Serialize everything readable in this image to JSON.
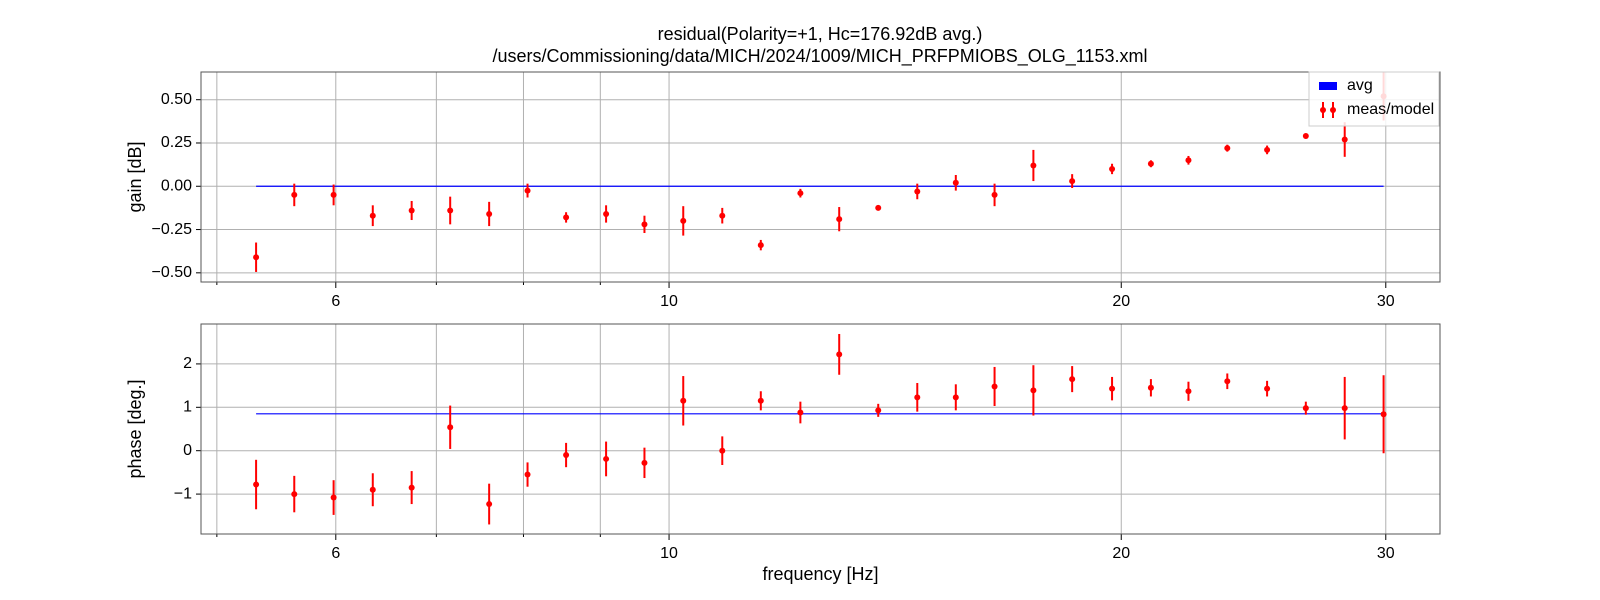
{
  "chart_data": [
    {
      "type": "errorbar",
      "title": "residual(Polarity=+1,  Hc=176.92dB avg.)",
      "subtitle": "/users/Commissioning/data/MICH/2024/1009/MICH_PRFPMIOBS_OLG_1153.xml",
      "ylabel": "gain [dB]",
      "xscale": "log",
      "grid": true,
      "legend": "upper right",
      "xlim": [
        4.88,
        32.6
      ],
      "xticks": [
        6,
        10,
        20,
        30
      ],
      "xminor_ticks": [
        5,
        7,
        8,
        9
      ],
      "ylim": [
        -0.553,
        0.66
      ],
      "yticks": [
        {
          "value": 0.5,
          "label": "0.50"
        },
        {
          "value": 0.25,
          "label": "0.25"
        },
        {
          "value": 0,
          "label": "0.00"
        },
        {
          "value": -0.25,
          "label": "−0.25"
        },
        {
          "value": -0.5,
          "label": "−0.50"
        }
      ],
      "series": [
        {
          "name": "avg",
          "kind": "line",
          "color": "#0000ff",
          "x": [
            5.31,
            29.9
          ],
          "values": [
            0,
            0
          ]
        },
        {
          "name": "meas/model",
          "kind": "errorbar",
          "color": "#ff0000",
          "x": [
            5.31,
            5.63,
            5.98,
            6.35,
            6.74,
            7.15,
            7.59,
            8.05,
            8.54,
            9.08,
            9.63,
            10.22,
            10.85,
            11.51,
            12.23,
            12.98,
            13.78,
            14.63,
            15.52,
            16.47,
            17.48,
            18.55,
            19.72,
            20.93,
            22.17,
            23.53,
            25.01,
            26.54,
            28.17,
            29.9
          ],
          "values": [
            -0.41,
            -0.05,
            -0.05,
            -0.17,
            -0.14,
            -0.14,
            -0.16,
            -0.025,
            -0.18,
            -0.16,
            -0.22,
            -0.2,
            -0.17,
            -0.34,
            -0.04,
            -0.19,
            -0.125,
            -0.03,
            0.02,
            -0.05,
            0.12,
            0.03,
            0.1,
            0.13,
            0.15,
            0.22,
            0.21,
            0.29,
            0.27,
            0.52
          ],
          "errors": [
            0.085,
            0.065,
            0.06,
            0.06,
            0.055,
            0.08,
            0.07,
            0.04,
            0.03,
            0.05,
            0.05,
            0.085,
            0.045,
            0.03,
            0.025,
            0.07,
            0.01,
            0.045,
            0.045,
            0.065,
            0.09,
            0.04,
            0.03,
            0.02,
            0.025,
            0.02,
            0.025,
            0.015,
            0.1,
            0.14
          ]
        }
      ]
    },
    {
      "type": "errorbar",
      "ylabel": "phase [deg.]",
      "xlabel": "frequency [Hz]",
      "xscale": "log",
      "grid": true,
      "xlim": [
        4.88,
        32.6
      ],
      "xticks": [
        6,
        10,
        20,
        30
      ],
      "xminor_ticks": [
        5,
        7,
        8,
        9
      ],
      "ylim": [
        -1.92,
        2.92
      ],
      "yticks": [
        2,
        1,
        0,
        {
          "value": -1,
          "label": "−1"
        }
      ],
      "series": [
        {
          "kind": "line",
          "color": "#0000ff",
          "x": [
            5.31,
            29.9
          ],
          "values": [
            0.85,
            0.85
          ]
        },
        {
          "kind": "errorbar",
          "color": "#ff0000",
          "x": [
            5.31,
            5.63,
            5.98,
            6.35,
            6.74,
            7.15,
            7.59,
            8.05,
            8.54,
            9.08,
            9.63,
            10.22,
            10.85,
            11.51,
            12.23,
            12.98,
            13.78,
            14.63,
            15.52,
            16.47,
            17.48,
            18.55,
            19.72,
            20.93,
            22.17,
            23.53,
            25.01,
            26.54,
            28.17,
            29.9
          ],
          "values": [
            -0.78,
            -1.0,
            -1.08,
            -0.9,
            -0.85,
            0.54,
            -1.23,
            -0.55,
            -0.1,
            -0.19,
            -0.28,
            1.15,
            0.0,
            1.15,
            0.88,
            2.22,
            0.93,
            1.23,
            1.23,
            1.48,
            1.39,
            1.65,
            1.43,
            1.45,
            1.37,
            1.6,
            1.43,
            0.98,
            0.98,
            0.84
          ],
          "errors": [
            0.57,
            0.42,
            0.4,
            0.38,
            0.38,
            0.5,
            0.47,
            0.28,
            0.28,
            0.4,
            0.35,
            0.57,
            0.33,
            0.22,
            0.25,
            0.47,
            0.15,
            0.33,
            0.3,
            0.45,
            0.58,
            0.3,
            0.27,
            0.2,
            0.22,
            0.18,
            0.18,
            0.15,
            0.72,
            0.9
          ]
        }
      ]
    }
  ]
}
